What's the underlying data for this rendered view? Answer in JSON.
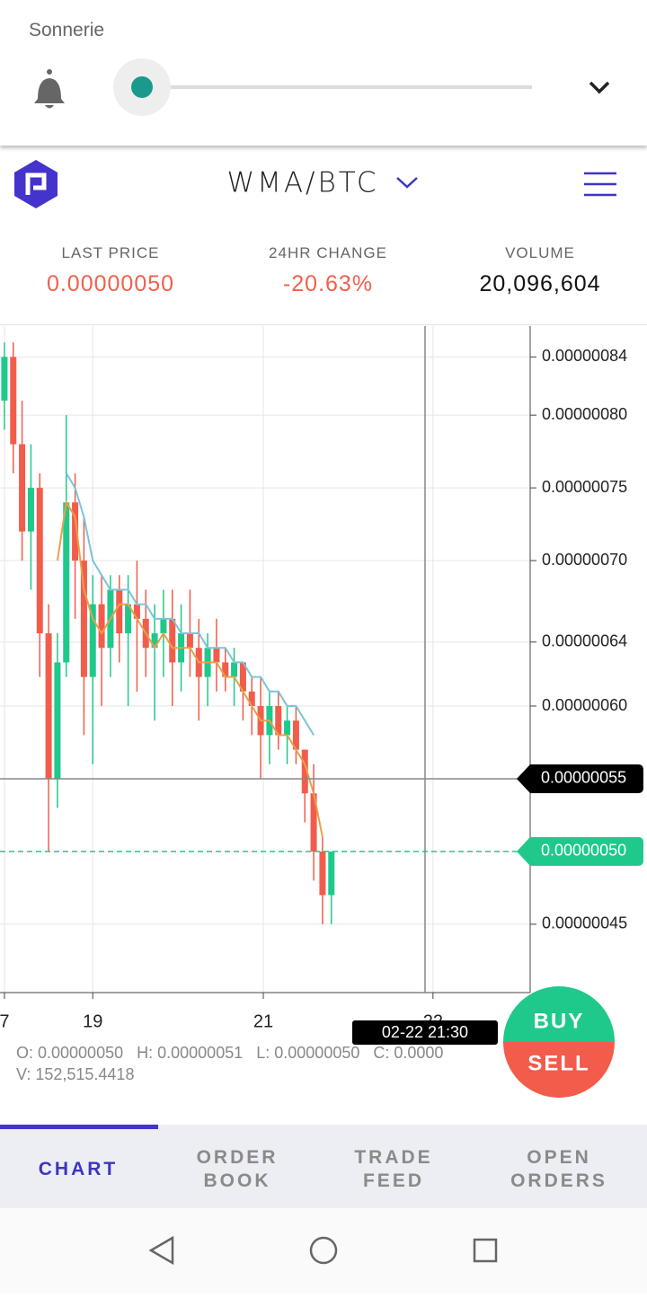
{
  "volume_panel": {
    "label": "Sonnerie"
  },
  "header": {
    "pair": "WMA/BTC"
  },
  "stats": [
    {
      "label": "LAST PRICE",
      "value": "0.00000050",
      "color": "#f0604d"
    },
    {
      "label": "24HR CHANGE",
      "value": "-20.63%",
      "color": "#f0604d"
    },
    {
      "label": "VOLUME",
      "value": "20,096,604",
      "color": "#111111"
    }
  ],
  "chart_data": {
    "type": "candlestick",
    "up_color": "#1ec98b",
    "down_color": "#f25c4b",
    "grid": true,
    "ylim": [
      4.03e-07,
      8.6e-07
    ],
    "yticks": [
      {
        "value": 8.4e-07,
        "label": "0.00000084"
      },
      {
        "value": 8e-07,
        "label": "0.00000080"
      },
      {
        "value": 7.5e-07,
        "label": "0.00000075"
      },
      {
        "value": 7e-07,
        "label": "0.00000070"
      },
      {
        "value": 6.44e-07,
        "label": "0.00000064"
      },
      {
        "value": 6e-07,
        "label": "0.00000060"
      },
      {
        "value": 4.5e-07,
        "label": "0.00000045"
      }
    ],
    "xlim": [
      -0.5,
      59.5
    ],
    "xticks": [
      {
        "value": 0,
        "label": "7"
      },
      {
        "value": 10,
        "label": "19"
      },
      {
        "value": 29.3,
        "label": "21"
      },
      {
        "value": 48.5,
        "label": "22"
      }
    ],
    "open": [
      8.1e-07,
      8.4e-07,
      7.8e-07,
      7.2e-07,
      7.5e-07,
      6.5e-07,
      5.5e-07,
      6.3e-07,
      7.4e-07,
      7e-07,
      6.2e-07,
      6.7e-07,
      6.4e-07,
      6.8e-07,
      6.5e-07,
      6.7e-07,
      6.6e-07,
      6.4e-07,
      6.5e-07,
      6.6e-07,
      6.3e-07,
      6.5e-07,
      6.4e-07,
      6.2e-07,
      6.4e-07,
      6.3e-07,
      6.2e-07,
      6.3e-07,
      6.1e-07,
      6e-07,
      5.8e-07,
      6e-07,
      5.8e-07,
      5.9e-07,
      5.7e-07,
      5.4e-07,
      5e-07,
      4.7e-07
    ],
    "high": [
      8.5e-07,
      8.5e-07,
      8.1e-07,
      7.8e-07,
      7.6e-07,
      6.7e-07,
      6.5e-07,
      8e-07,
      7.6e-07,
      7.3e-07,
      6.9e-07,
      6.9e-07,
      6.9e-07,
      6.9e-07,
      6.9e-07,
      7e-07,
      6.8e-07,
      6.7e-07,
      6.8e-07,
      6.8e-07,
      6.7e-07,
      6.8e-07,
      6.6e-07,
      6.5e-07,
      6.6e-07,
      6.4e-07,
      6.4e-07,
      6.3e-07,
      6.2e-07,
      6.2e-07,
      6.1e-07,
      6.1e-07,
      6e-07,
      6e-07,
      5.7e-07,
      5.6e-07,
      5.1e-07,
      5e-07
    ],
    "low": [
      7.9e-07,
      7.6e-07,
      7e-07,
      6.8e-07,
      6.2e-07,
      5e-07,
      5.3e-07,
      6.2e-07,
      6.6e-07,
      5.8e-07,
      5.6e-07,
      6e-07,
      6.2e-07,
      6.3e-07,
      6e-07,
      6.1e-07,
      6.2e-07,
      5.9e-07,
      6.2e-07,
      6e-07,
      6.1e-07,
      6.2e-07,
      5.9e-07,
      6e-07,
      6.1e-07,
      6.1e-07,
      6e-07,
      5.9e-07,
      5.8e-07,
      5.5e-07,
      5.6e-07,
      5.7e-07,
      5.6e-07,
      5.6e-07,
      5.2e-07,
      4.8e-07,
      4.5e-07,
      4.5e-07
    ],
    "close": [
      8.4e-07,
      7.8e-07,
      7.2e-07,
      7.5e-07,
      6.5e-07,
      5.5e-07,
      6.3e-07,
      7.4e-07,
      7e-07,
      6.2e-07,
      6.7e-07,
      6.4e-07,
      6.8e-07,
      6.5e-07,
      6.7e-07,
      6.6e-07,
      6.4e-07,
      6.5e-07,
      6.6e-07,
      6.3e-07,
      6.5e-07,
      6.4e-07,
      6.2e-07,
      6.4e-07,
      6.3e-07,
      6.2e-07,
      6.3e-07,
      6.1e-07,
      6e-07,
      5.8e-07,
      6e-07,
      5.8e-07,
      5.9e-07,
      5.7e-07,
      5.4e-07,
      5e-07,
      4.7e-07,
      5e-07
    ],
    "moving_averages": [
      {
        "color": "#7cc4d8",
        "values": [
          null,
          null,
          null,
          null,
          null,
          null,
          null,
          7.6e-07,
          7.5e-07,
          7.3e-07,
          7e-07,
          6.9e-07,
          6.8e-07,
          6.8e-07,
          6.8e-07,
          6.7e-07,
          6.7e-07,
          6.6e-07,
          6.6e-07,
          6.6e-07,
          6.5e-07,
          6.5e-07,
          6.5e-07,
          6.4e-07,
          6.4e-07,
          6.4e-07,
          6.3e-07,
          6.3e-07,
          6.2e-07,
          6.2e-07,
          6.1e-07,
          6.1e-07,
          6e-07,
          6e-07,
          5.9e-07,
          5.8e-07,
          null,
          null
        ]
      },
      {
        "color": "#e8a04a",
        "values": [
          null,
          null,
          null,
          null,
          null,
          null,
          7e-07,
          7.4e-07,
          7.3e-07,
          6.8e-07,
          6.6e-07,
          6.5e-07,
          6.6e-07,
          6.7e-07,
          6.7e-07,
          6.6e-07,
          6.5e-07,
          6.4e-07,
          6.5e-07,
          6.4e-07,
          6.4e-07,
          6.4e-07,
          6.3e-07,
          6.3e-07,
          6.3e-07,
          6.2e-07,
          6.2e-07,
          6.1e-07,
          6e-07,
          5.9e-07,
          5.9e-07,
          5.8e-07,
          5.8e-07,
          5.7e-07,
          5.6e-07,
          5.4e-07,
          5.1e-07,
          null
        ]
      }
    ],
    "crosshair": {
      "x": 47.6,
      "x_label": "02-22 21:30",
      "y": 5.5e-07,
      "y_label": "0.00000055"
    },
    "last_price_line": {
      "value": 5e-07,
      "label": "0.00000050",
      "color": "#1ec98b"
    }
  },
  "ohlc": {
    "o": "O: 0.00000050",
    "h": "H: 0.00000051",
    "l": "L: 0.00000050",
    "c": "C: 0.0000",
    "v": "V: 152,515.4418"
  },
  "actions": {
    "buy": "BUY",
    "sell": "SELL"
  },
  "tabs": [
    [
      "CHART"
    ],
    [
      "ORDER",
      "BOOK"
    ],
    [
      "TRADE",
      "FEED"
    ],
    [
      "OPEN",
      "ORDERS"
    ]
  ]
}
